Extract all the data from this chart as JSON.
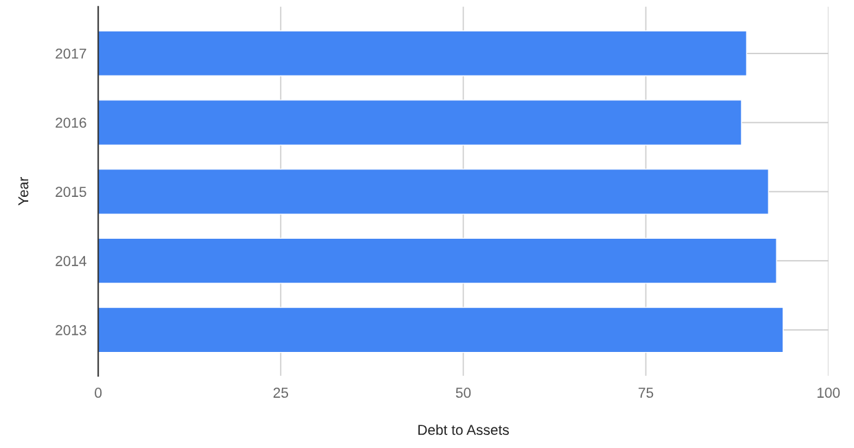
{
  "chart_data": {
    "type": "bar",
    "orientation": "horizontal",
    "xlabel": "Debt to Assets",
    "ylabel": "Year",
    "categories": [
      "2017",
      "2016",
      "2015",
      "2014",
      "2013"
    ],
    "values": [
      88.8,
      88.1,
      91.8,
      92.9,
      93.8
    ],
    "color": "#4285f4",
    "xlim": [
      0,
      100
    ],
    "xticks": [
      0,
      25,
      50,
      75,
      100
    ],
    "grid": true,
    "legend": false
  }
}
